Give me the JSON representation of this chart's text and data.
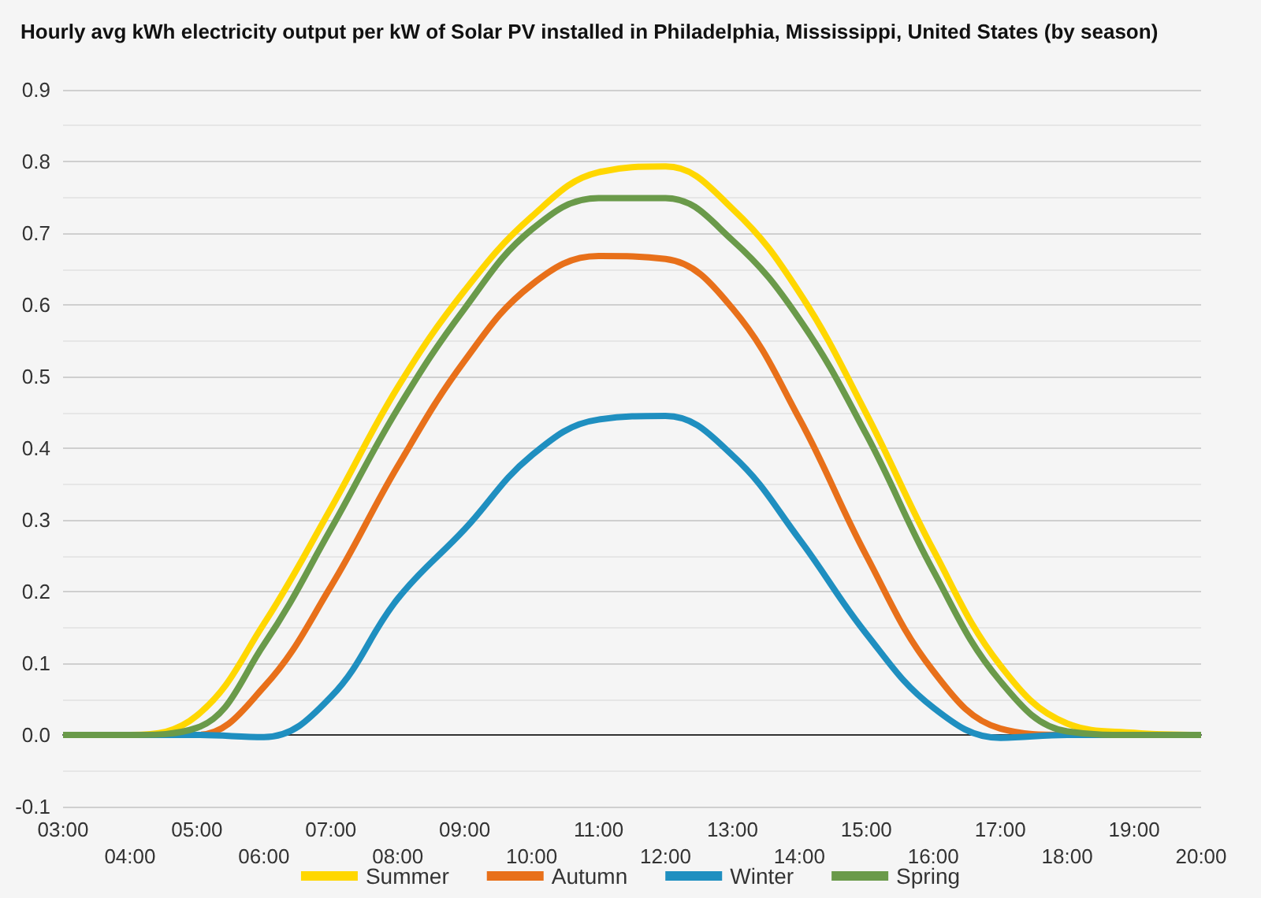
{
  "chart_data": {
    "type": "line",
    "title": "Hourly avg kWh electricity output per kW of Solar PV installed in Philadelphia, Mississippi, United States (by season)",
    "categories": [
      "03:00",
      "04:00",
      "05:00",
      "06:00",
      "07:00",
      "08:00",
      "09:00",
      "10:00",
      "11:00",
      "12:00",
      "13:00",
      "14:00",
      "15:00",
      "16:00",
      "17:00",
      "18:00",
      "19:00",
      "20:00"
    ],
    "series": [
      {
        "name": "Summer",
        "color": "#ffd700",
        "values": [
          0,
          0,
          0.027,
          0.155,
          0.316,
          0.485,
          0.62,
          0.723,
          0.785,
          0.793,
          0.734,
          0.617,
          0.448,
          0.258,
          0.097,
          0.016,
          0.003,
          0
        ]
      },
      {
        "name": "Autumn",
        "color": "#e8701a",
        "values": [
          0,
          0,
          0,
          0.067,
          0.207,
          0.375,
          0.522,
          0.628,
          0.668,
          0.664,
          0.595,
          0.441,
          0.25,
          0.089,
          0.009,
          0,
          0,
          0
        ]
      },
      {
        "name": "Winter",
        "color": "#1f8fc0",
        "values": [
          0,
          0,
          0,
          -0.003,
          0.053,
          0.19,
          0.287,
          0.39,
          0.44,
          0.445,
          0.39,
          0.273,
          0.141,
          0.038,
          -0.004,
          0,
          0,
          0
        ]
      },
      {
        "name": "Spring",
        "color": "#6a9a4a",
        "values": [
          0,
          0,
          0.01,
          0.126,
          0.287,
          0.455,
          0.595,
          0.705,
          0.749,
          0.749,
          0.69,
          0.58,
          0.419,
          0.229,
          0.075,
          0.005,
          0,
          0
        ]
      }
    ],
    "ylim": [
      -0.1,
      0.9
    ],
    "yticks": [
      -0.1,
      {
        "value": 0,
        "label": "0.0"
      },
      0.1,
      0.2,
      0.3,
      0.4,
      0.5,
      0.6,
      0.7,
      0.8,
      0.9
    ],
    "grid": "y",
    "legend": "bottom",
    "marker": "none",
    "line_style": "solid"
  }
}
